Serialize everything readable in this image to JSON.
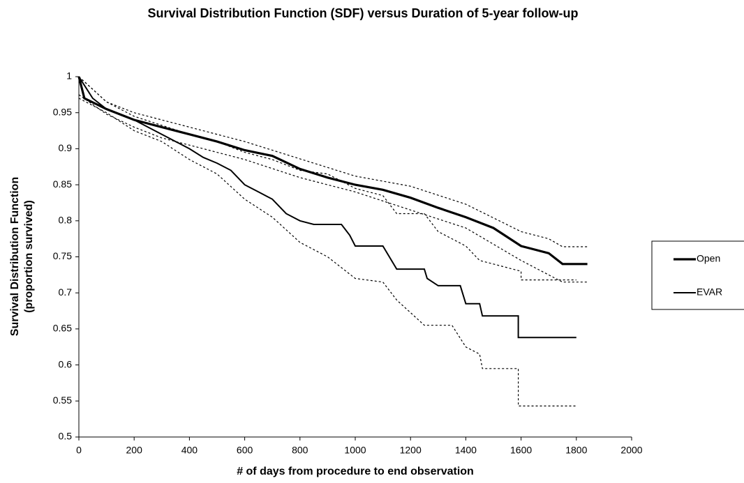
{
  "chart_data": {
    "type": "line",
    "title": "Survival Distribution Function (SDF) versus Duration of 5-year follow-up",
    "x_label": "# of days from procedure to end observation",
    "y_label": [
      "Survival Distribution Function",
      "(proportion survived)"
    ],
    "xlim": [
      0,
      2000
    ],
    "xticks": [
      0,
      200,
      400,
      600,
      800,
      1000,
      1200,
      1400,
      1600,
      1800,
      2000
    ],
    "ylim": [
      0.5,
      1
    ],
    "yticks": [
      0.5,
      0.55,
      0.6,
      0.65,
      0.7,
      0.75,
      0.8,
      0.85,
      0.9,
      0.95,
      1
    ],
    "legend": "right",
    "series": [
      {
        "name": "Open",
        "color": "#000000",
        "width": 3.2,
        "dashed": false,
        "x": [
          0,
          20,
          100,
          200,
          300,
          400,
          500,
          600,
          700,
          800,
          900,
          1000,
          1100,
          1200,
          1300,
          1400,
          1500,
          1600,
          1700,
          1750,
          1840
        ],
        "values": [
          1,
          0.97,
          0.955,
          0.94,
          0.93,
          0.92,
          0.91,
          0.898,
          0.89,
          0.872,
          0.86,
          0.85,
          0.843,
          0.832,
          0.818,
          0.805,
          0.79,
          0.765,
          0.755,
          0.74,
          0.74
        ]
      },
      {
        "name": "EVAR",
        "color": "#000000",
        "width": 2,
        "dashed": false,
        "x": [
          0,
          50,
          100,
          200,
          300,
          400,
          450,
          500,
          550,
          600,
          650,
          700,
          750,
          800,
          850,
          950,
          980,
          1000,
          1100,
          1150,
          1250,
          1260,
          1300,
          1380,
          1400,
          1450,
          1460,
          1590,
          1590,
          1800
        ],
        "values": [
          1,
          0.97,
          0.955,
          0.94,
          0.92,
          0.9,
          0.888,
          0.88,
          0.87,
          0.85,
          0.84,
          0.83,
          0.81,
          0.8,
          0.795,
          0.795,
          0.78,
          0.765,
          0.765,
          0.733,
          0.733,
          0.72,
          0.71,
          0.71,
          0.685,
          0.685,
          0.668,
          0.668,
          0.638,
          0.638
        ]
      },
      {
        "color": "#000000",
        "width": 1.2,
        "dashed": true,
        "x": [
          0,
          100,
          200,
          400,
          600,
          800,
          1000,
          1200,
          1400,
          1600,
          1700,
          1750,
          1840
        ],
        "values": [
          1,
          0.965,
          0.95,
          0.93,
          0.91,
          0.886,
          0.862,
          0.848,
          0.823,
          0.785,
          0.775,
          0.764,
          0.764
        ]
      },
      {
        "color": "#000000",
        "width": 1.2,
        "dashed": true,
        "x": [
          0,
          100,
          200,
          300,
          400,
          600,
          800,
          1000,
          1200,
          1400,
          1600,
          1700,
          1750,
          1840
        ],
        "values": [
          0.975,
          0.948,
          0.93,
          0.915,
          0.905,
          0.885,
          0.86,
          0.84,
          0.815,
          0.79,
          0.745,
          0.725,
          0.715,
          0.715
        ]
      },
      {
        "color": "#000000",
        "width": 1.2,
        "dashed": true,
        "x": [
          0,
          100,
          200,
          400,
          500,
          600,
          700,
          800,
          900,
          1000,
          1100,
          1150,
          1250,
          1300,
          1400,
          1450,
          1600,
          1600,
          1800
        ],
        "values": [
          1,
          0.965,
          0.945,
          0.92,
          0.91,
          0.895,
          0.885,
          0.87,
          0.865,
          0.845,
          0.835,
          0.81,
          0.81,
          0.785,
          0.765,
          0.745,
          0.73,
          0.718,
          0.718
        ]
      },
      {
        "color": "#000000",
        "width": 1.2,
        "dashed": true,
        "x": [
          0,
          100,
          200,
          300,
          400,
          500,
          600,
          700,
          800,
          900,
          950,
          1000,
          1100,
          1150,
          1250,
          1350,
          1400,
          1450,
          1460,
          1590,
          1590,
          1800
        ],
        "values": [
          0.97,
          0.95,
          0.925,
          0.91,
          0.885,
          0.865,
          0.83,
          0.805,
          0.77,
          0.75,
          0.735,
          0.72,
          0.715,
          0.69,
          0.655,
          0.655,
          0.625,
          0.615,
          0.595,
          0.595,
          0.543,
          0.543
        ]
      }
    ]
  }
}
